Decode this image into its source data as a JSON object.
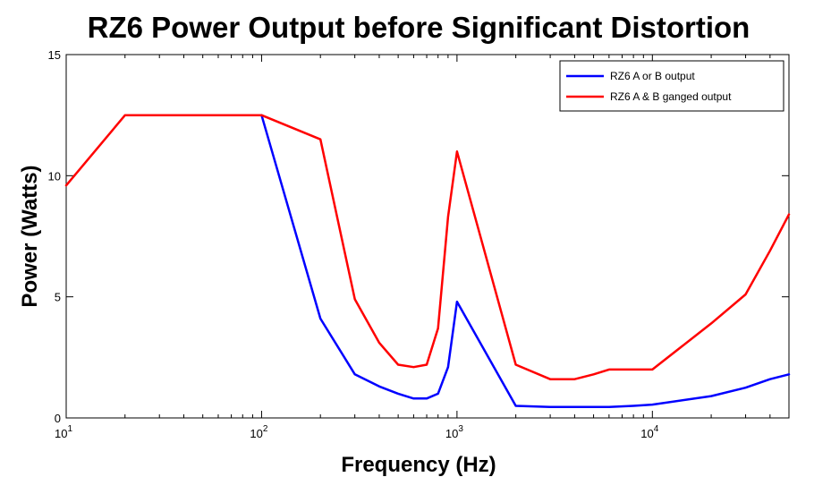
{
  "chart_data": {
    "type": "line",
    "title": "RZ6 Power Output before Significant Distortion",
    "xlabel": "Frequency (Hz)",
    "ylabel": "Power (Watts)",
    "xscale": "log",
    "xlim": [
      10,
      50000
    ],
    "ylim": [
      0,
      15
    ],
    "x_ticks": [
      {
        "value": 10,
        "base": "10",
        "exp": "1"
      },
      {
        "value": 100,
        "base": "10",
        "exp": "2"
      },
      {
        "value": 1000,
        "base": "10",
        "exp": "3"
      },
      {
        "value": 10000,
        "base": "10",
        "exp": "4"
      }
    ],
    "y_ticks": [
      {
        "value": 0,
        "label": "0"
      },
      {
        "value": 5,
        "label": "5"
      },
      {
        "value": 10,
        "label": "10"
      },
      {
        "value": 15,
        "label": "15"
      }
    ],
    "grid": false,
    "legend_position": "top-right",
    "series": [
      {
        "name": "RZ6 A or B output",
        "color": "#0000ff",
        "x": [
          100,
          200,
          300,
          400,
          500,
          600,
          700,
          800,
          900,
          1000,
          2000,
          3000,
          4000,
          5000,
          6000,
          8000,
          10000,
          20000,
          30000,
          40000,
          50000
        ],
        "y": [
          12.5,
          4.1,
          1.8,
          1.3,
          1.0,
          0.8,
          0.8,
          1.0,
          2.1,
          4.8,
          0.5,
          0.45,
          0.45,
          0.45,
          0.45,
          0.5,
          0.55,
          0.9,
          1.25,
          1.6,
          1.8
        ]
      },
      {
        "name": "RZ6 A & B ganged output",
        "color": "#ff0000",
        "x": [
          10,
          20,
          50,
          100,
          200,
          300,
          400,
          500,
          600,
          700,
          800,
          900,
          1000,
          2000,
          3000,
          4000,
          5000,
          6000,
          8000,
          10000,
          20000,
          30000,
          40000,
          50000
        ],
        "y": [
          9.6,
          12.5,
          12.5,
          12.5,
          11.5,
          4.9,
          3.1,
          2.2,
          2.1,
          2.2,
          3.7,
          8.3,
          11.0,
          2.2,
          1.6,
          1.6,
          1.8,
          2.0,
          2.0,
          2.0,
          3.9,
          5.1,
          6.9,
          8.4
        ]
      }
    ]
  }
}
